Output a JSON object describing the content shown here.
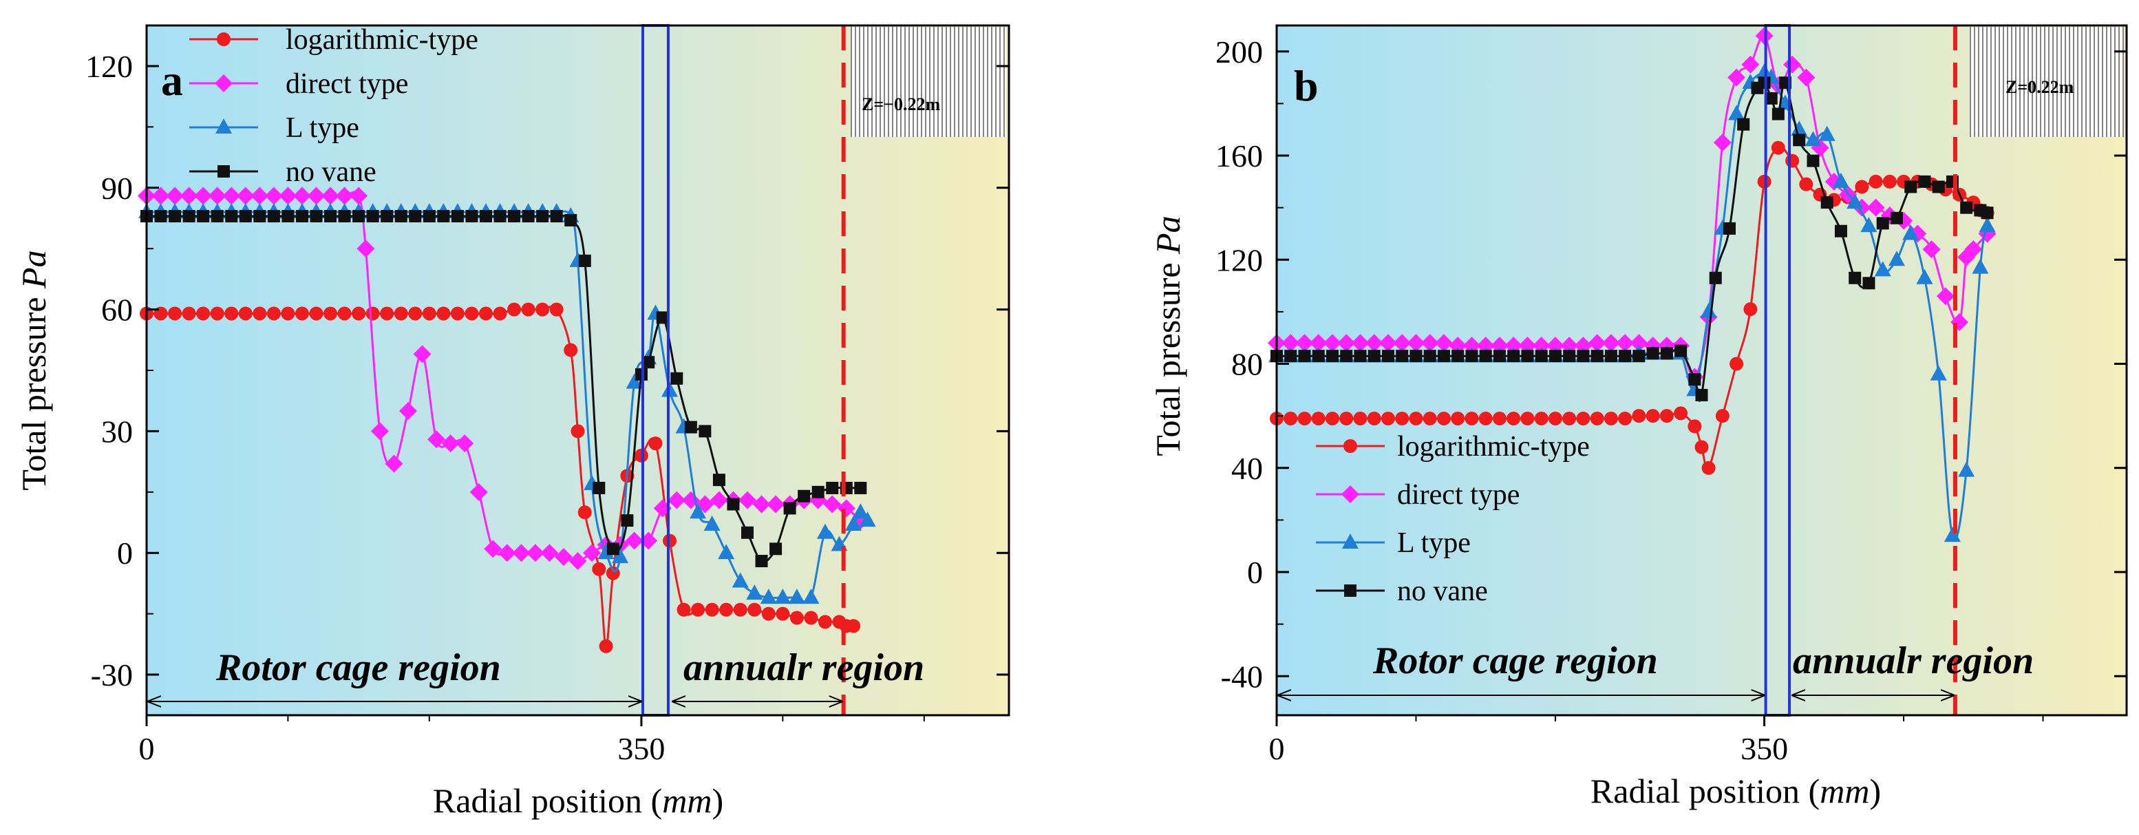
{
  "colors": {
    "red": "#ee1c1c",
    "magenta": "#ff22ff",
    "blue": "#1f7fd6",
    "black": "#111111",
    "frame_blue": "#2233dd",
    "bg_left": "#a6e0f5",
    "bg_right": "#f5edbb"
  },
  "chart_data": [
    {
      "type": "line",
      "panel_label": "a",
      "xlabel_prefix": "Radial position (",
      "xlabel_unit": "mm",
      "xlabel_suffix": ")",
      "ylabel_prefix": "Total pressure ",
      "ylabel_unit": "Pa",
      "xlim": [
        0,
        610
      ],
      "ylim": [
        -40,
        130
      ],
      "xticks": [
        0,
        350
      ],
      "xtick_labels": [
        "0",
        "350"
      ],
      "yticks": [
        -30,
        0,
        30,
        60,
        90,
        120
      ],
      "ytick_labels": [
        "-30",
        "0",
        "30",
        "60",
        "90",
        "120"
      ],
      "legend_position": "top-left",
      "inset_label": "Z=−0.22m",
      "blade_box_x": [
        351,
        369
      ],
      "dashed_line_x": 493,
      "region_labels": {
        "left": "Rotor cage region",
        "right": "annualr region"
      },
      "region_arrow_left_x": [
        0,
        350
      ],
      "region_arrow_right_x": [
        372,
        493
      ],
      "series": [
        {
          "name": "logarithmic-type",
          "color_key": "red",
          "marker": "circle",
          "x": [
            0,
            10,
            20,
            30,
            40,
            50,
            60,
            70,
            80,
            90,
            100,
            110,
            120,
            130,
            140,
            150,
            160,
            170,
            180,
            190,
            200,
            210,
            220,
            230,
            240,
            250,
            260,
            270,
            280,
            290,
            300,
            305,
            310,
            320,
            325,
            330,
            340,
            350,
            360,
            370,
            380,
            390,
            400,
            410,
            420,
            430,
            440,
            450,
            460,
            470,
            480,
            490,
            495,
            500
          ],
          "y": [
            59,
            59,
            59,
            59,
            59,
            59,
            59,
            59,
            59,
            59,
            59,
            59,
            59,
            59,
            59,
            59,
            59,
            59,
            59,
            59,
            59,
            59,
            59,
            59,
            59,
            59,
            60,
            60,
            60,
            60,
            50,
            30,
            10,
            -4,
            -23,
            -5,
            19,
            24,
            27,
            3,
            -14,
            -14,
            -14,
            -14,
            -14,
            -14,
            -15,
            -15,
            -16,
            -16,
            -17,
            -17,
            -18,
            -18
          ]
        },
        {
          "name": "direct type",
          "color_key": "magenta",
          "marker": "diamond",
          "x": [
            0,
            10,
            20,
            30,
            40,
            50,
            60,
            70,
            80,
            90,
            100,
            110,
            120,
            130,
            140,
            150,
            155,
            165,
            175,
            185,
            195,
            205,
            215,
            225,
            235,
            245,
            255,
            265,
            275,
            285,
            295,
            305,
            315,
            325,
            335,
            345,
            355,
            365,
            375,
            385,
            395,
            405,
            415,
            425,
            435,
            445,
            455,
            465,
            475,
            485,
            495,
            505
          ],
          "y": [
            88,
            88,
            88,
            88,
            88,
            88,
            88,
            88,
            88,
            88,
            88,
            88,
            88,
            88,
            88,
            88,
            75,
            30,
            22,
            35,
            49,
            28,
            27,
            27,
            15,
            1,
            0,
            0,
            0,
            0,
            -1,
            -2,
            0,
            2,
            2,
            3,
            3,
            11,
            13,
            13,
            12,
            13,
            13,
            13,
            12,
            12,
            12,
            13,
            13,
            12,
            11,
            8
          ]
        },
        {
          "name": "L type",
          "color_key": "blue",
          "marker": "triangle",
          "x": [
            0,
            10,
            20,
            30,
            40,
            50,
            60,
            70,
            80,
            90,
            100,
            110,
            120,
            130,
            140,
            150,
            160,
            170,
            180,
            190,
            200,
            210,
            220,
            230,
            240,
            250,
            260,
            270,
            280,
            290,
            300,
            305,
            315,
            325,
            335,
            345,
            355,
            360,
            370,
            380,
            390,
            400,
            410,
            420,
            430,
            440,
            450,
            460,
            470,
            480,
            490,
            500,
            505,
            510
          ],
          "y": [
            84,
            84,
            84,
            84,
            84,
            84,
            84,
            84,
            84,
            84,
            84,
            84,
            84,
            84,
            84,
            84,
            84,
            84,
            84,
            84,
            84,
            84,
            84,
            84,
            84,
            84,
            84,
            84,
            84,
            84,
            83,
            72,
            17,
            0,
            -1,
            42,
            48,
            59,
            40,
            31,
            10,
            7,
            0,
            -7,
            -10,
            -11,
            -11,
            -11,
            -11,
            5,
            2,
            7,
            10,
            8
          ]
        },
        {
          "name": "no vane",
          "color_key": "black",
          "marker": "square",
          "x": [
            0,
            10,
            20,
            30,
            40,
            50,
            60,
            70,
            80,
            90,
            100,
            110,
            120,
            130,
            140,
            150,
            160,
            170,
            180,
            190,
            200,
            210,
            220,
            230,
            240,
            250,
            260,
            270,
            280,
            290,
            300,
            310,
            320,
            330,
            340,
            350,
            355,
            365,
            375,
            385,
            395,
            405,
            415,
            425,
            435,
            445,
            455,
            465,
            475,
            485,
            495,
            505
          ],
          "y": [
            83,
            83,
            83,
            83,
            83,
            83,
            83,
            83,
            83,
            83,
            83,
            83,
            83,
            83,
            83,
            83,
            83,
            83,
            83,
            83,
            83,
            83,
            83,
            83,
            83,
            83,
            83,
            83,
            83,
            83,
            82,
            72,
            16,
            1,
            8,
            44,
            47,
            58,
            43,
            31,
            30,
            18,
            12,
            5,
            -2,
            1,
            11,
            14,
            15,
            16,
            16,
            16
          ]
        }
      ]
    },
    {
      "type": "line",
      "panel_label": "b",
      "xlabel_prefix": "Radial position (",
      "xlabel_unit": "mm",
      "xlabel_suffix": ")",
      "ylabel_prefix": "Total pressure ",
      "ylabel_unit": "Pa",
      "xlim": [
        0,
        610
      ],
      "ylim": [
        -55,
        210
      ],
      "xticks": [
        0,
        350
      ],
      "xtick_labels": [
        "0",
        "350"
      ],
      "yticks": [
        -40,
        0,
        40,
        80,
        120,
        160,
        200
      ],
      "ytick_labels": [
        "-40",
        "0",
        "40",
        "80",
        "120",
        "160",
        "200"
      ],
      "legend_position": "bottom-left",
      "inset_label": "Z=0.22m",
      "blade_box_x": [
        351,
        368
      ],
      "dashed_line_x": 487,
      "region_labels": {
        "left": "Rotor cage region",
        "right": "annualr region"
      },
      "region_arrow_left_x": [
        0,
        350
      ],
      "region_arrow_right_x": [
        370,
        487
      ],
      "series": [
        {
          "name": "logarithmic-type",
          "color_key": "red",
          "marker": "circle",
          "x": [
            0,
            10,
            20,
            30,
            40,
            50,
            60,
            70,
            80,
            90,
            100,
            110,
            120,
            130,
            140,
            150,
            160,
            170,
            180,
            190,
            200,
            210,
            220,
            230,
            240,
            250,
            260,
            270,
            280,
            290,
            300,
            305,
            310,
            320,
            330,
            340,
            350,
            360,
            370,
            380,
            390,
            400,
            410,
            420,
            430,
            440,
            450,
            460,
            470,
            480,
            490,
            500,
            505,
            510
          ],
          "y": [
            59,
            59,
            59,
            59,
            59,
            59,
            59,
            59,
            59,
            59,
            59,
            59,
            59,
            59,
            59,
            59,
            59,
            59,
            59,
            59,
            59,
            59,
            59,
            59,
            59,
            59,
            60,
            60,
            60,
            61,
            56,
            48,
            40,
            60,
            80,
            101,
            150,
            163,
            158,
            149,
            145,
            143,
            144,
            148,
            150,
            150,
            150,
            150,
            149,
            147,
            145,
            142,
            139,
            138
          ]
        },
        {
          "name": "direct type",
          "color_key": "magenta",
          "marker": "diamond",
          "x": [
            0,
            10,
            20,
            30,
            40,
            50,
            60,
            70,
            80,
            90,
            100,
            110,
            120,
            130,
            140,
            150,
            160,
            170,
            180,
            190,
            200,
            210,
            220,
            230,
            240,
            250,
            260,
            270,
            280,
            290,
            300,
            310,
            320,
            330,
            340,
            350,
            360,
            370,
            380,
            390,
            400,
            410,
            420,
            430,
            440,
            450,
            460,
            470,
            480,
            490,
            495,
            500,
            510
          ],
          "y": [
            88,
            88,
            88,
            88,
            88,
            88,
            88,
            88,
            88,
            88,
            88,
            88,
            88,
            87,
            87,
            87,
            87,
            87,
            87,
            87,
            87,
            87,
            87,
            88,
            88,
            88,
            88,
            87,
            87,
            87,
            75,
            98,
            165,
            190,
            195,
            206,
            187,
            195,
            190,
            163,
            150,
            145,
            140,
            140,
            137,
            135,
            130,
            124,
            106,
            96,
            121,
            124,
            130
          ]
        },
        {
          "name": "L type",
          "color_key": "blue",
          "marker": "triangle",
          "x": [
            0,
            10,
            20,
            30,
            40,
            50,
            60,
            70,
            80,
            90,
            100,
            110,
            120,
            130,
            140,
            150,
            160,
            170,
            180,
            190,
            200,
            210,
            220,
            230,
            240,
            250,
            260,
            270,
            280,
            290,
            300,
            310,
            320,
            330,
            340,
            350,
            355,
            365,
            375,
            385,
            395,
            405,
            415,
            425,
            435,
            445,
            455,
            465,
            475,
            485,
            495,
            505,
            510
          ],
          "y": [
            83,
            83,
            83,
            83,
            83,
            83,
            83,
            83,
            83,
            83,
            83,
            83,
            83,
            83,
            83,
            83,
            83,
            83,
            83,
            83,
            83,
            83,
            83,
            83,
            83,
            83,
            84,
            84,
            84,
            84,
            70,
            100,
            132,
            176,
            188,
            192,
            190,
            180,
            170,
            166,
            168,
            150,
            142,
            133,
            116,
            120,
            130,
            113,
            76,
            14,
            39,
            117,
            133
          ]
        },
        {
          "name": "no vane",
          "color_key": "black",
          "marker": "square",
          "x": [
            0,
            10,
            20,
            30,
            40,
            50,
            60,
            70,
            80,
            90,
            100,
            110,
            120,
            130,
            140,
            150,
            160,
            170,
            180,
            190,
            200,
            210,
            220,
            230,
            240,
            250,
            260,
            270,
            280,
            290,
            300,
            305,
            315,
            325,
            335,
            345,
            350,
            355,
            360,
            365,
            375,
            385,
            395,
            405,
            415,
            425,
            435,
            445,
            455,
            465,
            475,
            485,
            495,
            505,
            510
          ],
          "y": [
            83,
            83,
            83,
            83,
            83,
            83,
            83,
            83,
            83,
            83,
            83,
            83,
            83,
            83,
            83,
            83,
            83,
            83,
            83,
            83,
            83,
            83,
            83,
            83,
            83,
            83,
            83,
            84,
            84,
            85,
            74,
            68,
            113,
            132,
            172,
            186,
            188,
            182,
            176,
            188,
            166,
            158,
            142,
            131,
            113,
            111,
            134,
            136,
            148,
            150,
            148,
            150,
            140,
            139,
            138
          ]
        }
      ]
    }
  ]
}
